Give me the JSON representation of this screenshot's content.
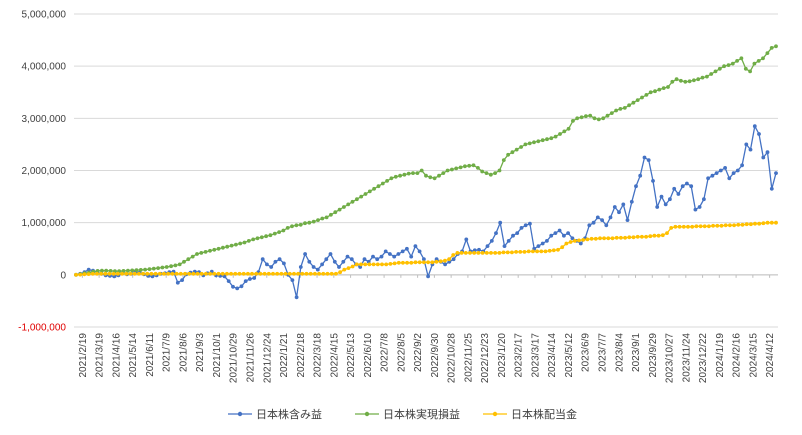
{
  "chart_data": {
    "type": "line",
    "title": "",
    "xlabel": "",
    "ylabel": "",
    "ylim": [
      -1000000,
      5000000
    ],
    "y_ticks": [
      5000000,
      4000000,
      3000000,
      2000000,
      1000000,
      0,
      -1000000
    ],
    "y_tick_labels": [
      "5,000,000",
      "4,000,000",
      "3,000,000",
      "2,000,000",
      "1,000,000",
      "0",
      "-1,000,000"
    ],
    "negative_label_color": "#e00000",
    "grid": true,
    "legend_position": "bottom",
    "x_tick_labels": [
      "2021/2/19",
      "2021/3/19",
      "2021/4/16",
      "2021/5/14",
      "2021/6/11",
      "2021/7/9",
      "2021/8/6",
      "2021/9/3",
      "2021/10/1",
      "2021/10/29",
      "2021/11/26",
      "2021/12/24",
      "2022/1/21",
      "2022/2/18",
      "2022/3/18",
      "2022/4/15",
      "2022/5/13",
      "2022/6/10",
      "2022/7/8",
      "2022/8/5",
      "2022/9/2",
      "2022/9/30",
      "2022/10/28",
      "2022/11/25",
      "2022/12/23",
      "2023/1/20",
      "2023/2/17",
      "2023/3/17",
      "2023/4/14",
      "2023/5/12",
      "2023/6/9",
      "2023/7/7",
      "2023/8/4",
      "2023/9/1",
      "2023/9/29",
      "2023/10/27",
      "2023/11/24",
      "2023/12/22",
      "2024/1/19",
      "2024/2/16",
      "2024/3/15",
      "2024/4/12"
    ],
    "series": [
      {
        "name": "日本株含み益",
        "color": "#4472c4",
        "values": [
          0,
          20000,
          50000,
          100000,
          80000,
          50000,
          20000,
          -10000,
          -20000,
          -30000,
          -10000,
          30000,
          10000,
          20000,
          50000,
          40000,
          10000,
          -20000,
          -30000,
          -10000,
          20000,
          30000,
          50000,
          60000,
          -150000,
          -100000,
          10000,
          40000,
          60000,
          50000,
          -10000,
          30000,
          60000,
          -10000,
          -20000,
          -30000,
          -120000,
          -230000,
          -260000,
          -220000,
          -120000,
          -80000,
          -60000,
          50000,
          300000,
          200000,
          150000,
          250000,
          300000,
          220000,
          0,
          -100000,
          -430000,
          150000,
          400000,
          250000,
          150000,
          100000,
          200000,
          300000,
          400000,
          250000,
          150000,
          250000,
          350000,
          300000,
          200000,
          150000,
          300000,
          250000,
          350000,
          300000,
          350000,
          450000,
          400000,
          350000,
          400000,
          450000,
          500000,
          350000,
          550000,
          450000,
          300000,
          -30000,
          200000,
          300000,
          250000,
          200000,
          250000,
          300000,
          400000,
          450000,
          680000,
          450000,
          470000,
          480000,
          450000,
          550000,
          650000,
          800000,
          1000000,
          550000,
          650000,
          750000,
          800000,
          900000,
          950000,
          980000,
          500000,
          550000,
          600000,
          650000,
          750000,
          800000,
          850000,
          750000,
          800000,
          700000,
          650000,
          600000,
          700000,
          950000,
          1000000,
          1100000,
          1050000,
          950000,
          1100000,
          1300000,
          1200000,
          1350000,
          1050000,
          1400000,
          1700000,
          1900000,
          2250000,
          2200000,
          1800000,
          1300000,
          1500000,
          1350000,
          1450000,
          1650000,
          1550000,
          1700000,
          1750000,
          1700000,
          1250000,
          1300000,
          1450000,
          1850000,
          1900000,
          1950000,
          2000000,
          2050000,
          1850000,
          1950000,
          2000000,
          2100000,
          2500000,
          2400000,
          2850000,
          2700000,
          2250000,
          2350000,
          1650000,
          1950000
        ]
      },
      {
        "name": "日本株実現損益",
        "color": "#70ad47",
        "values": [
          0,
          15000,
          30000,
          45000,
          60000,
          75000,
          80000,
          80000,
          75000,
          70000,
          70000,
          75000,
          80000,
          85000,
          90000,
          95000,
          100000,
          110000,
          120000,
          130000,
          140000,
          150000,
          165000,
          180000,
          200000,
          250000,
          300000,
          350000,
          400000,
          420000,
          440000,
          460000,
          480000,
          500000,
          520000,
          540000,
          560000,
          580000,
          600000,
          620000,
          650000,
          680000,
          700000,
          720000,
          740000,
          760000,
          790000,
          820000,
          850000,
          900000,
          930000,
          950000,
          960000,
          990000,
          1000000,
          1020000,
          1050000,
          1080000,
          1100000,
          1150000,
          1200000,
          1250000,
          1300000,
          1350000,
          1400000,
          1450000,
          1500000,
          1550000,
          1600000,
          1650000,
          1700000,
          1750000,
          1800000,
          1850000,
          1880000,
          1900000,
          1920000,
          1940000,
          1950000,
          1950000,
          2000000,
          1900000,
          1870000,
          1850000,
          1900000,
          1950000,
          2000000,
          2020000,
          2040000,
          2060000,
          2080000,
          2090000,
          2100000,
          2050000,
          1980000,
          1950000,
          1920000,
          1950000,
          2000000,
          2200000,
          2300000,
          2350000,
          2400000,
          2450000,
          2500000,
          2520000,
          2540000,
          2560000,
          2580000,
          2600000,
          2620000,
          2650000,
          2700000,
          2750000,
          2800000,
          2950000,
          3000000,
          3020000,
          3040000,
          3050000,
          3000000,
          2980000,
          3000000,
          3050000,
          3100000,
          3150000,
          3180000,
          3200000,
          3250000,
          3300000,
          3350000,
          3400000,
          3450000,
          3500000,
          3520000,
          3550000,
          3580000,
          3600000,
          3700000,
          3750000,
          3720000,
          3700000,
          3710000,
          3730000,
          3750000,
          3780000,
          3800000,
          3850000,
          3900000,
          3950000,
          4000000,
          4020000,
          4050000,
          4100000,
          4150000,
          3950000,
          3900000,
          4050000,
          4100000,
          4150000,
          4250000,
          4350000,
          4380000
        ]
      },
      {
        "name": "日本株配当金",
        "color": "#ffc000",
        "values": [
          0,
          5000,
          10000,
          15000,
          20000,
          20000,
          20000,
          20000,
          20000,
          20000,
          20000,
          20000,
          20000,
          20000,
          20000,
          20000,
          20000,
          20000,
          20000,
          20000,
          20000,
          20000,
          20000,
          20000,
          20000,
          20000,
          20000,
          20000,
          20000,
          20000,
          20000,
          20000,
          20000,
          20000,
          20000,
          20000,
          20000,
          20000,
          20000,
          20000,
          20000,
          20000,
          20000,
          20000,
          20000,
          20000,
          20000,
          20000,
          20000,
          20000,
          20000,
          20000,
          20000,
          20000,
          20000,
          20000,
          20000,
          20000,
          20000,
          20000,
          20000,
          20000,
          20000,
          50000,
          100000,
          130000,
          160000,
          200000,
          200000,
          200000,
          200000,
          200000,
          200000,
          200000,
          200000,
          210000,
          220000,
          230000,
          230000,
          230000,
          230000,
          240000,
          240000,
          240000,
          240000,
          240000,
          250000,
          260000,
          270000,
          300000,
          380000,
          420000,
          420000,
          420000,
          420000,
          420000,
          420000,
          420000,
          420000,
          420000,
          420000,
          420000,
          430000,
          430000,
          430000,
          440000,
          440000,
          440000,
          450000,
          450000,
          450000,
          450000,
          450000,
          460000,
          470000,
          480000,
          530000,
          600000,
          630000,
          650000,
          660000,
          670000,
          680000,
          690000,
          690000,
          700000,
          700000,
          700000,
          700000,
          710000,
          710000,
          710000,
          720000,
          720000,
          730000,
          730000,
          730000,
          740000,
          750000,
          750000,
          760000,
          800000,
          900000,
          920000,
          920000,
          920000,
          920000,
          920000,
          930000,
          930000,
          930000,
          930000,
          940000,
          940000,
          940000,
          950000,
          950000,
          950000,
          960000,
          960000,
          970000,
          970000,
          980000,
          980000,
          990000,
          1000000,
          1000000,
          1000000
        ]
      }
    ]
  }
}
